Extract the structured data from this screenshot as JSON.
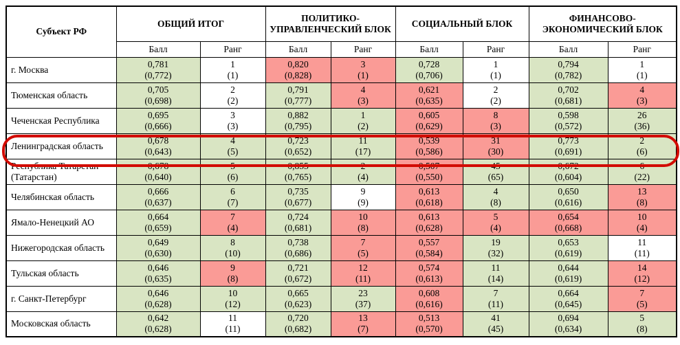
{
  "colors": {
    "good": "#d9e5c3",
    "bad": "#fa9b96",
    "highlight": "#d20b00",
    "grid": "#000000"
  },
  "table": {
    "region_header": "Субъект РФ",
    "score_label": "Балл",
    "rank_label": "Ранг",
    "groups": [
      "ОБЩИЙ ИТОГ",
      "ПОЛИТИКО-УПРАВЛЕНЧЕСКИЙ БЛОК",
      "СОЦИАЛЬНЫЙ БЛОК",
      "ФИНАНСОВО-ЭКОНОМИЧЕСКИЙ БЛОК"
    ],
    "rows": [
      {
        "region": "г. Москва",
        "highlighted": false,
        "cells": [
          {
            "value": "0,781",
            "prev": "(0,772)",
            "bg": "good"
          },
          {
            "value": "1",
            "prev": "(1)",
            "bg": "none"
          },
          {
            "value": "0,820",
            "prev": "(0,828)",
            "bg": "bad"
          },
          {
            "value": "3",
            "prev": "(1)",
            "bg": "bad"
          },
          {
            "value": "0,728",
            "prev": "(0,706)",
            "bg": "good"
          },
          {
            "value": "1",
            "prev": "(1)",
            "bg": "none"
          },
          {
            "value": "0,794",
            "prev": "(0,782)",
            "bg": "good"
          },
          {
            "value": "1",
            "prev": "(1)",
            "bg": "none"
          }
        ]
      },
      {
        "region": "Тюменская область",
        "highlighted": false,
        "cells": [
          {
            "value": "0,705",
            "prev": "(0,698)",
            "bg": "good"
          },
          {
            "value": "2",
            "prev": "(2)",
            "bg": "none"
          },
          {
            "value": "0,791",
            "prev": "(0,777)",
            "bg": "good"
          },
          {
            "value": "4",
            "prev": "(3)",
            "bg": "bad"
          },
          {
            "value": "0,621",
            "prev": "(0,635)",
            "bg": "bad"
          },
          {
            "value": "2",
            "prev": "(2)",
            "bg": "none"
          },
          {
            "value": "0,702",
            "prev": "(0,681)",
            "bg": "good"
          },
          {
            "value": "4",
            "prev": "(3)",
            "bg": "bad"
          }
        ]
      },
      {
        "region": "Чеченская Республика",
        "highlighted": false,
        "cells": [
          {
            "value": "0,695",
            "prev": "(0,666)",
            "bg": "good"
          },
          {
            "value": "3",
            "prev": "(3)",
            "bg": "none"
          },
          {
            "value": "0,882",
            "prev": "(0,795)",
            "bg": "good"
          },
          {
            "value": "1",
            "prev": "(2)",
            "bg": "good"
          },
          {
            "value": "0,605",
            "prev": "(0,629)",
            "bg": "bad"
          },
          {
            "value": "8",
            "prev": "(3)",
            "bg": "bad"
          },
          {
            "value": "0,598",
            "prev": "(0,572)",
            "bg": "good"
          },
          {
            "value": "26",
            "prev": "(36)",
            "bg": "good"
          }
        ]
      },
      {
        "region": "Ленинградская область",
        "highlighted": true,
        "cells": [
          {
            "value": "0,678",
            "prev": "(0,643)",
            "bg": "good"
          },
          {
            "value": "4",
            "prev": "(5)",
            "bg": "good"
          },
          {
            "value": "0,723",
            "prev": "(0,652)",
            "bg": "good"
          },
          {
            "value": "11",
            "prev": "(17)",
            "bg": "good"
          },
          {
            "value": "0,539",
            "prev": "(0,586)",
            "bg": "bad"
          },
          {
            "value": "31",
            "prev": "(30)",
            "bg": "bad"
          },
          {
            "value": "0,773",
            "prev": "(0,691)",
            "bg": "good"
          },
          {
            "value": "2",
            "prev": "(6)",
            "bg": "good"
          }
        ]
      },
      {
        "region": "Республика Татарстан (Татарстан)",
        "highlighted": false,
        "cells": [
          {
            "value": "0,678",
            "prev": "(0,640)",
            "bg": "good"
          },
          {
            "value": "5",
            "prev": "(6)",
            "bg": "good"
          },
          {
            "value": "0,855",
            "prev": "(0,765)",
            "bg": "good"
          },
          {
            "value": "2",
            "prev": "(4)",
            "bg": "good"
          },
          {
            "value": "0,507",
            "prev": "(0,550)",
            "bg": "bad"
          },
          {
            "value": "45",
            "prev": "(65)",
            "bg": "good"
          },
          {
            "value": "0,672",
            "prev": "(0,604)",
            "bg": "good"
          },
          {
            "value": "6",
            "prev": "(22)",
            "bg": "good"
          }
        ]
      },
      {
        "region": "Челябинская область",
        "highlighted": false,
        "cells": [
          {
            "value": "0,666",
            "prev": "(0,637)",
            "bg": "good"
          },
          {
            "value": "6",
            "prev": "(7)",
            "bg": "good"
          },
          {
            "value": "0,735",
            "prev": "(0,677)",
            "bg": "good"
          },
          {
            "value": "9",
            "prev": "(9)",
            "bg": "none"
          },
          {
            "value": "0,613",
            "prev": "(0,618)",
            "bg": "bad"
          },
          {
            "value": "4",
            "prev": "(8)",
            "bg": "good"
          },
          {
            "value": "0,650",
            "prev": "(0,616)",
            "bg": "good"
          },
          {
            "value": "13",
            "prev": "(8)",
            "bg": "bad"
          }
        ]
      },
      {
        "region": "Ямало-Ненецкий АО",
        "highlighted": false,
        "cells": [
          {
            "value": "0,664",
            "prev": "(0,659)",
            "bg": "good"
          },
          {
            "value": "7",
            "prev": "(4)",
            "bg": "bad"
          },
          {
            "value": "0,724",
            "prev": "(0,681)",
            "bg": "good"
          },
          {
            "value": "10",
            "prev": "(8)",
            "bg": "bad"
          },
          {
            "value": "0,613",
            "prev": "(0,628)",
            "bg": "bad"
          },
          {
            "value": "5",
            "prev": "(4)",
            "bg": "bad"
          },
          {
            "value": "0,654",
            "prev": "(0,668)",
            "bg": "bad"
          },
          {
            "value": "10",
            "prev": "(4)",
            "bg": "bad"
          }
        ]
      },
      {
        "region": "Нижегородская область",
        "highlighted": false,
        "cells": [
          {
            "value": "0,649",
            "prev": "(0,630)",
            "bg": "good"
          },
          {
            "value": "8",
            "prev": "(10)",
            "bg": "good"
          },
          {
            "value": "0,738",
            "prev": "(0,686)",
            "bg": "good"
          },
          {
            "value": "7",
            "prev": "(5)",
            "bg": "bad"
          },
          {
            "value": "0,557",
            "prev": "(0,584)",
            "bg": "bad"
          },
          {
            "value": "19",
            "prev": "(32)",
            "bg": "good"
          },
          {
            "value": "0,653",
            "prev": "(0,619)",
            "bg": "good"
          },
          {
            "value": "11",
            "prev": "(11)",
            "bg": "none"
          }
        ]
      },
      {
        "region": "Тульская область",
        "highlighted": false,
        "cells": [
          {
            "value": "0,646",
            "prev": "(0,635)",
            "bg": "good"
          },
          {
            "value": "9",
            "prev": "(8)",
            "bg": "bad"
          },
          {
            "value": "0,721",
            "prev": "(0,672)",
            "bg": "good"
          },
          {
            "value": "12",
            "prev": "(11)",
            "bg": "bad"
          },
          {
            "value": "0,574",
            "prev": "(0,613)",
            "bg": "bad"
          },
          {
            "value": "11",
            "prev": "(14)",
            "bg": "good"
          },
          {
            "value": "0,644",
            "prev": "(0,619)",
            "bg": "good"
          },
          {
            "value": "14",
            "prev": "(12)",
            "bg": "bad"
          }
        ]
      },
      {
        "region": "г. Санкт-Петербург",
        "highlighted": false,
        "cells": [
          {
            "value": "0,646",
            "prev": "(0,628)",
            "bg": "good"
          },
          {
            "value": "10",
            "prev": "(12)",
            "bg": "good"
          },
          {
            "value": "0,665",
            "prev": "(0,623)",
            "bg": "good"
          },
          {
            "value": "23",
            "prev": "(37)",
            "bg": "good"
          },
          {
            "value": "0,608",
            "prev": "(0,616)",
            "bg": "bad"
          },
          {
            "value": "7",
            "prev": "(11)",
            "bg": "good"
          },
          {
            "value": "0,664",
            "prev": "(0,645)",
            "bg": "good"
          },
          {
            "value": "7",
            "prev": "(5)",
            "bg": "bad"
          }
        ]
      },
      {
        "region": "Московская область",
        "highlighted": false,
        "cells": [
          {
            "value": "0,642",
            "prev": "(0,628)",
            "bg": "good"
          },
          {
            "value": "11",
            "prev": "(11)",
            "bg": "none"
          },
          {
            "value": "0,720",
            "prev": "(0,682)",
            "bg": "good"
          },
          {
            "value": "13",
            "prev": "(7)",
            "bg": "bad"
          },
          {
            "value": "0,513",
            "prev": "(0,570)",
            "bg": "bad"
          },
          {
            "value": "41",
            "prev": "(45)",
            "bg": "good"
          },
          {
            "value": "0,694",
            "prev": "(0,634)",
            "bg": "good"
          },
          {
            "value": "5",
            "prev": "(8)",
            "bg": "good"
          }
        ]
      }
    ]
  }
}
